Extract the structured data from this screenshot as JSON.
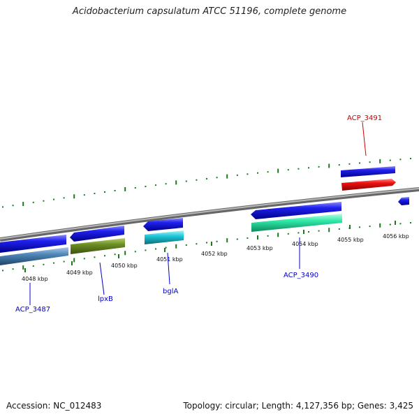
{
  "title": "Acidobacterium capsulatum ATCC 51196, complete genome",
  "footer": {
    "accession": "Accession: NC_012483",
    "summary": "Topology: circular; Length: 4,127,356 bp; Genes: 3,425"
  },
  "ruler": {
    "ticks": [
      "4048 kbp",
      "4049 kbp",
      "4050 kbp",
      "4051 kbp",
      "4052 kbp",
      "4053 kbp",
      "4054 kbp",
      "4055 kbp",
      "4056 kbp"
    ]
  },
  "genes": [
    {
      "label": "ACP_3487",
      "color": "#0000cc"
    },
    {
      "label": "lpxB",
      "color": "#0000cc"
    },
    {
      "label": "bglA",
      "color": "#0000cc"
    },
    {
      "label": "ACP_3490",
      "color": "#0000cc"
    },
    {
      "label": "ACP_3491",
      "color": "#cc0000"
    }
  ],
  "colors": {
    "cds": "#1a1adf",
    "lpxB_function": "#6b8e23",
    "ACP_3487_function": "#4f86b8",
    "bglA_function": "#20c8d8",
    "ACP_3490_function": "#2ee8a8",
    "ACP_3491_function": "#ee1111",
    "backbone": "#8c8c8c",
    "ticks": "#1a7a1a"
  }
}
